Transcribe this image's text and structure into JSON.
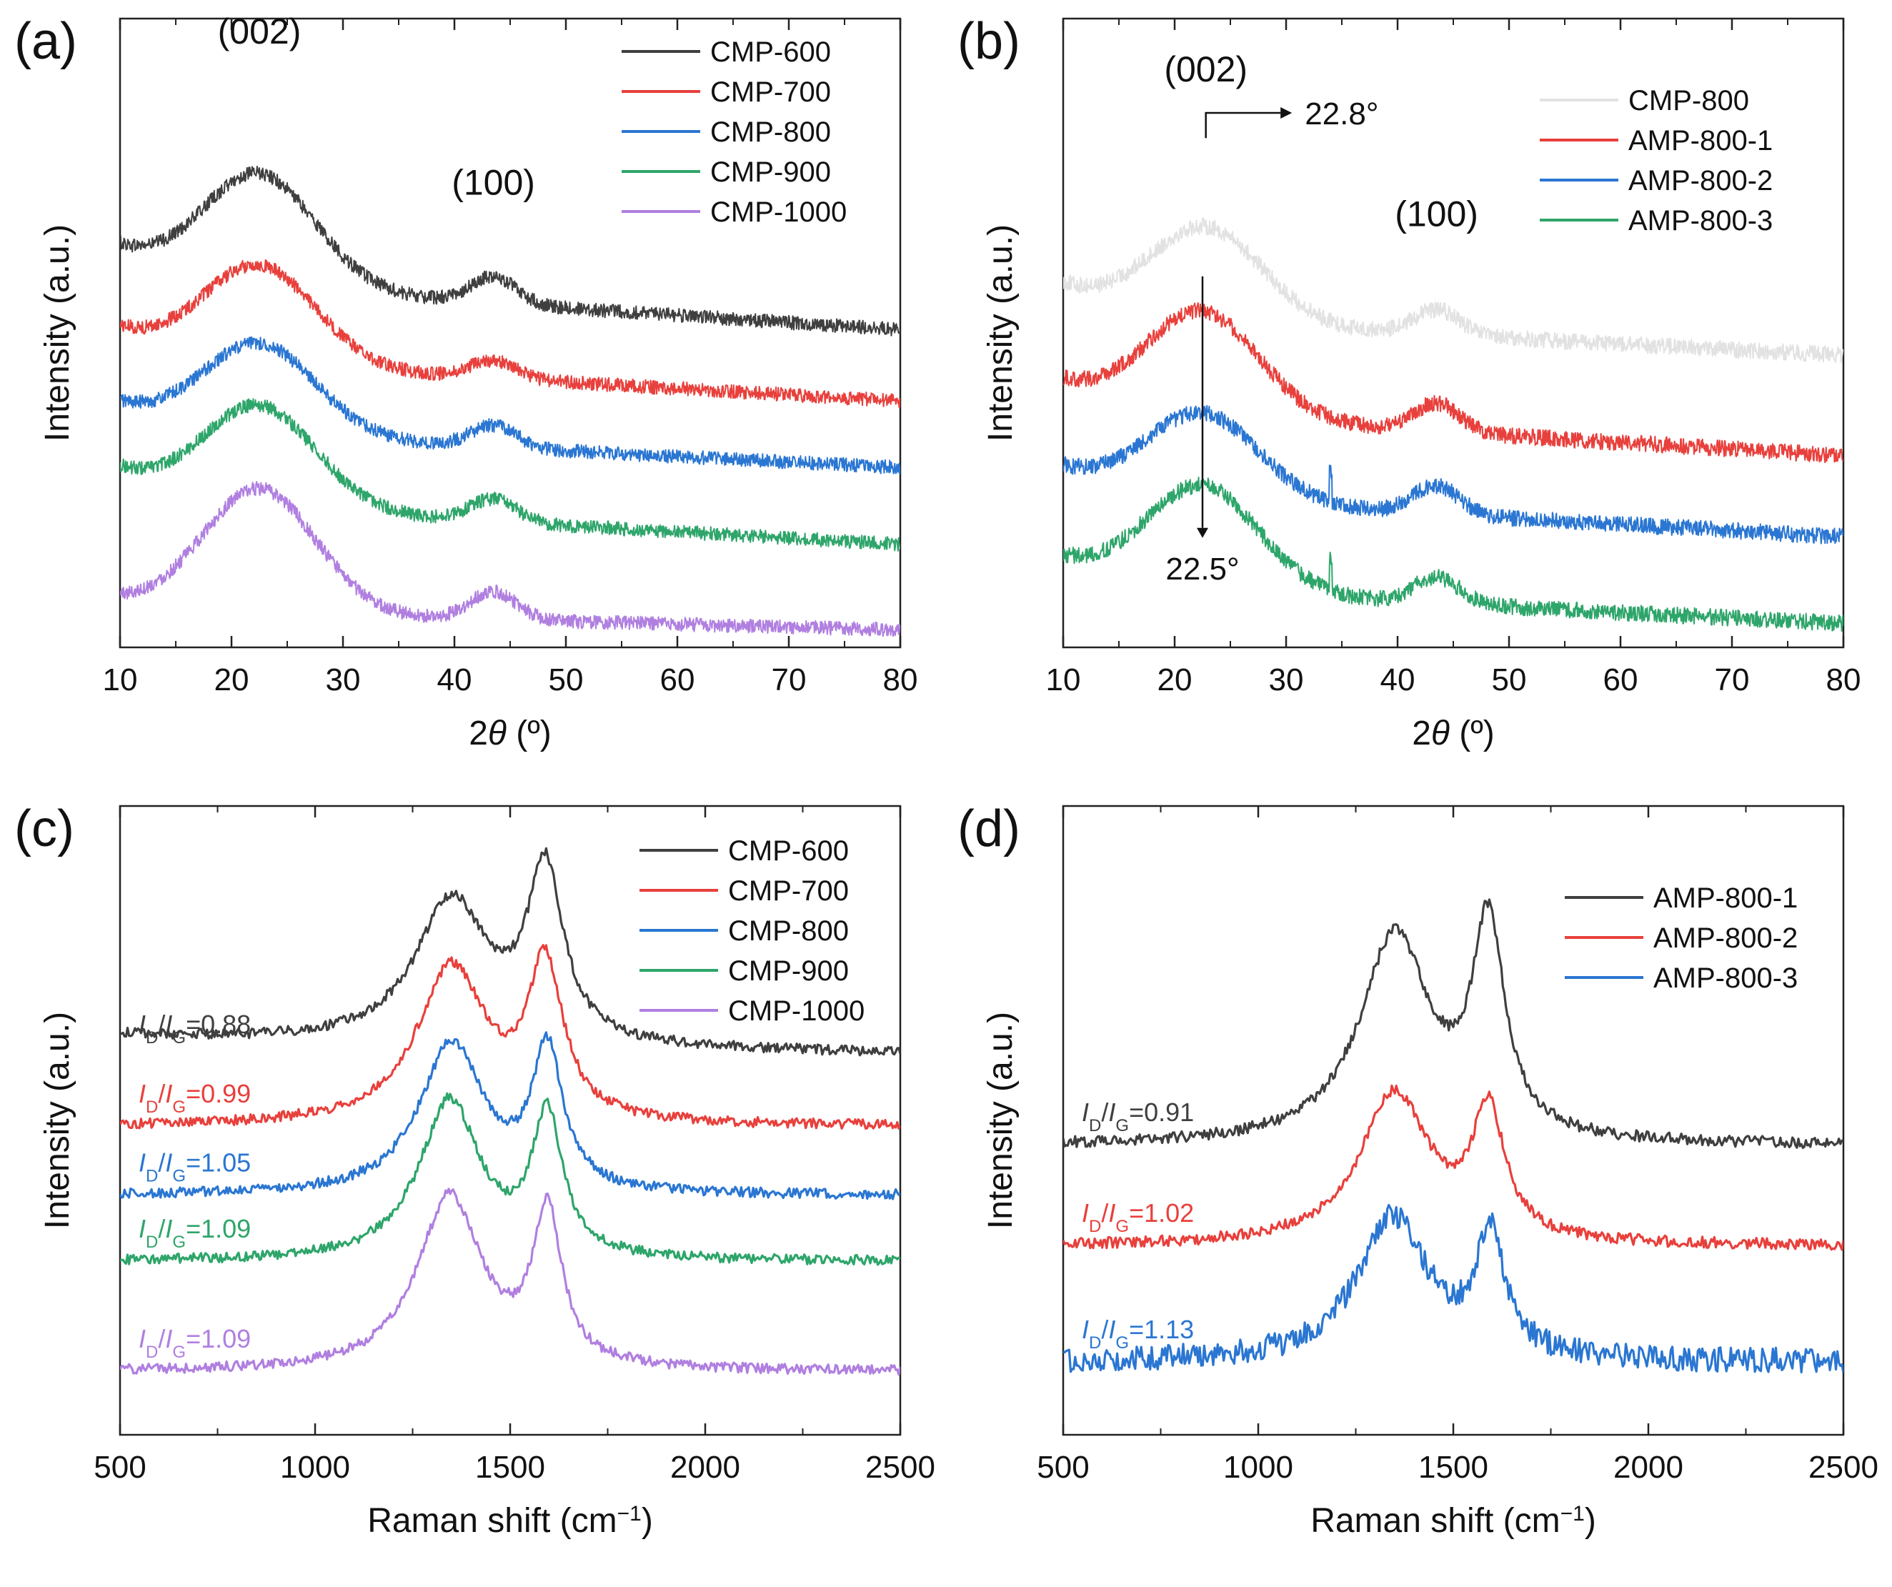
{
  "figure": {
    "panel_order": [
      "a",
      "b",
      "c",
      "d"
    ]
  },
  "chart_data": [
    {
      "id": "a",
      "type": "line",
      "panel_label": "(a)",
      "xlabel_parts": [
        "2",
        "θ",
        " (º)"
      ],
      "ylabel": "Intensity (a.u.)",
      "xlim": [
        10,
        80
      ],
      "ylim": [
        0,
        1
      ],
      "yticks": false,
      "xticks": [
        10,
        20,
        30,
        40,
        50,
        60,
        70,
        80
      ],
      "noise": 0.011,
      "legend_position": "top-right",
      "peak_labels": [
        {
          "text": "(002)",
          "x": 22.5,
          "y": 0.96
        },
        {
          "text": "(100)",
          "x": 43.5,
          "y": 0.72
        }
      ],
      "series": [
        {
          "name": "CMP-600",
          "color": "#3f3f3f",
          "base": 0.505,
          "p002": [
            22.5,
            4.6,
            0.176
          ],
          "p100": [
            43.5,
            2.9,
            0.042
          ],
          "slope": -0.0021,
          "start": 0.05
        },
        {
          "name": "CMP-700",
          "color": "#e8403c",
          "base": 0.392,
          "p002": [
            22.5,
            4.6,
            0.154
          ],
          "p100": [
            43.5,
            2.9,
            0.028
          ],
          "slope": -0.0018,
          "start": 0.045
        },
        {
          "name": "CMP-800",
          "color": "#2a76d2",
          "base": 0.286,
          "p002": [
            22.5,
            4.6,
            0.142
          ],
          "p100": [
            43.5,
            2.9,
            0.035
          ],
          "slope": -0.0016,
          "start": 0.04
        },
        {
          "name": "CMP-900",
          "color": "#2ea56a",
          "base": 0.164,
          "p002": [
            22.5,
            4.6,
            0.158
          ],
          "p100": [
            43.5,
            2.9,
            0.036
          ],
          "slope": -0.0018,
          "start": 0.05
        },
        {
          "name": "CMP-1000",
          "color": "#b07fe0",
          "base": 0.028,
          "p002": [
            22.5,
            4.6,
            0.197
          ],
          "p100": [
            43.5,
            2.9,
            0.045
          ],
          "slope": -0.0008,
          "start": 0.018
        }
      ]
    },
    {
      "id": "b",
      "type": "line",
      "panel_label": "(b)",
      "xlabel_parts": [
        "2",
        "θ",
        " (º)"
      ],
      "ylabel": "Intensity (a.u.)",
      "xlim": [
        10,
        80
      ],
      "ylim": [
        0,
        1
      ],
      "yticks": false,
      "xticks": [
        10,
        20,
        30,
        40,
        50,
        60,
        70,
        80
      ],
      "noise": 0.013,
      "legend_position": "top-right",
      "peak_labels": [
        {
          "text": "(002)",
          "x": 22.8,
          "y": 0.9
        },
        {
          "text": "(100)",
          "x": 43.5,
          "y": 0.67
        }
      ],
      "annotations": [
        {
          "text": "22.8°",
          "x": 22.8,
          "y0": 0.81,
          "y1": 0.85,
          "x1": 29.5,
          "direction": "right"
        },
        {
          "text": "22.5°",
          "x": 22.5,
          "y0": 0.59,
          "y1": 0.19,
          "direction": "down"
        }
      ],
      "series": [
        {
          "name": "CMP-800",
          "color": "#e2e2e2",
          "base": 0.465,
          "p002": [
            22.8,
            4.6,
            0.148
          ],
          "p100": [
            43.5,
            2.9,
            0.04
          ],
          "slope": -0.0016,
          "start": 0.05
        },
        {
          "name": "AMP-800-1",
          "color": "#e8403c",
          "base": 0.305,
          "p002": [
            22.5,
            4.6,
            0.164
          ],
          "p100": [
            43.5,
            2.9,
            0.045
          ],
          "slope": -0.0019,
          "start": 0.045
        },
        {
          "name": "AMP-800-2",
          "color": "#2a76d2",
          "base": 0.176,
          "p002": [
            22.5,
            4.6,
            0.135
          ],
          "p100": [
            43.5,
            2.9,
            0.045
          ],
          "slope": -0.0018,
          "start": 0.04,
          "spike": 34
        },
        {
          "name": "AMP-800-3",
          "color": "#2ea56a",
          "base": 0.038,
          "p002": [
            22.5,
            4.6,
            0.164
          ],
          "p100": [
            43.5,
            2.9,
            0.042
          ],
          "slope": -0.0016,
          "start": 0.042,
          "spike": 34
        }
      ]
    },
    {
      "id": "c",
      "type": "line",
      "panel_label": "(c)",
      "xlabel_parts": [
        "Raman shift (cm",
        "−1",
        ")"
      ],
      "ylabel": "Intensity (a.u.)",
      "xlim": [
        500,
        2500
      ],
      "ylim": [
        0,
        1
      ],
      "yticks": false,
      "xticks": [
        500,
        1000,
        1500,
        2000,
        2500
      ],
      "noise": 0.008,
      "legend_position": "top-right",
      "series": [
        {
          "name": "CMP-600",
          "color": "#3f3f3f",
          "base": 0.6,
          "D": [
            1350,
            115,
            0.23
          ],
          "G": [
            1590,
            55,
            0.27
          ],
          "tail": 0.035,
          "ratio_label": "0.88"
        },
        {
          "name": "CMP-700",
          "color": "#e8403c",
          "base": 0.49,
          "D": [
            1350,
            110,
            0.25
          ],
          "G": [
            1590,
            55,
            0.24
          ],
          "tail": 0.0,
          "ratio_label": "0.99"
        },
        {
          "name": "CMP-800",
          "color": "#2a76d2",
          "base": 0.38,
          "D": [
            1350,
            100,
            0.24
          ],
          "G": [
            1595,
            48,
            0.22
          ],
          "tail": 0.0,
          "ratio_label": "1.05"
        },
        {
          "name": "CMP-900",
          "color": "#2ea56a",
          "base": 0.275,
          "D": [
            1345,
            95,
            0.254
          ],
          "G": [
            1595,
            48,
            0.22
          ],
          "tail": 0.0,
          "ratio_label": "1.09"
        },
        {
          "name": "CMP-1000",
          "color": "#b07fe0",
          "base": 0.1,
          "D": [
            1345,
            100,
            0.277
          ],
          "G": [
            1595,
            45,
            0.24
          ],
          "tail": 0.0,
          "ratio_label": "1.09"
        }
      ]
    },
    {
      "id": "d",
      "type": "line",
      "panel_label": "(d)",
      "xlabel_parts": [
        "Raman shift (cm",
        "−1",
        ")"
      ],
      "ylabel": "Intensity (a.u.)",
      "xlim": [
        500,
        2500
      ],
      "ylim": [
        0,
        1
      ],
      "yticks": false,
      "xticks": [
        500,
        1000,
        1500,
        2000,
        2500
      ],
      "noise": 0.009,
      "legend_position": "top-right",
      "series": [
        {
          "name": "AMP-800-1",
          "color": "#3f3f3f",
          "base": 0.46,
          "D": [
            1350,
            110,
            0.33
          ],
          "G": [
            1590,
            50,
            0.33
          ],
          "tail": 0.0,
          "ratio_label": "0.91"
        },
        {
          "name": "AMP-800-2",
          "color": "#e8403c",
          "base": 0.3,
          "D": [
            1350,
            110,
            0.24
          ],
          "G": [
            1590,
            50,
            0.2
          ],
          "tail": 0.0,
          "ratio_label": "1.02"
        },
        {
          "name": "AMP-800-3",
          "color": "#2a76d2",
          "base": 0.115,
          "D": [
            1345,
            110,
            0.23
          ],
          "G": [
            1595,
            45,
            0.185
          ],
          "tail": 0.0,
          "ratio_label": "1.13",
          "noisy": true
        }
      ]
    }
  ]
}
